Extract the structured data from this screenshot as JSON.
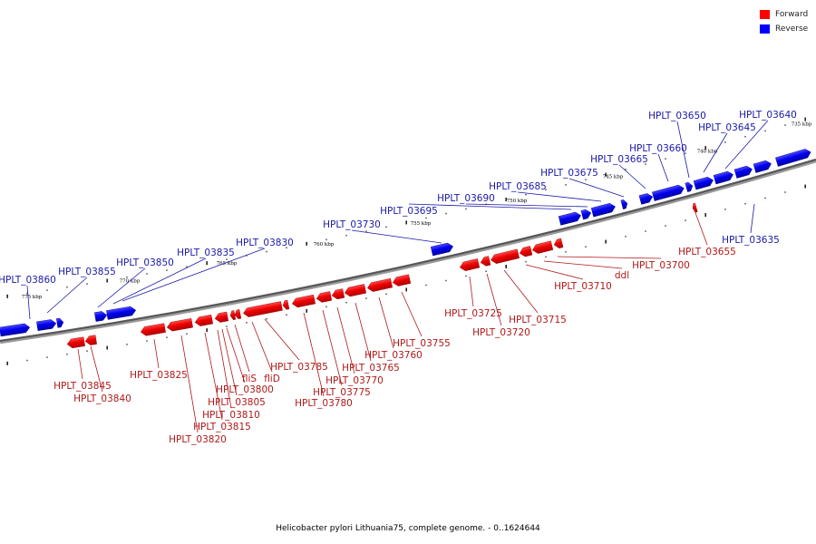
{
  "legend": {
    "forward": {
      "label": "Forward",
      "color": "#ff0000"
    },
    "reverse": {
      "label": "Reverse",
      "color": "#0000ff"
    }
  },
  "caption": "Helicobacter pylori Lithuania75, complete genome. - 0..1624644",
  "kbp_labels": [
    "735 kbp",
    "740 kbp",
    "745 kbp",
    "750 kbp",
    "755 kbp",
    "760 kbp",
    "765 kbp",
    "770 kbp",
    "775 kbp"
  ],
  "reverse_labels": [
    "HPLT_03860",
    "HPLT_03855",
    "HPLT_03850",
    "HPLT_03835",
    "HPLT_03830",
    "HPLT_03730",
    "HPLT_03695",
    "HPLT_03690",
    "HPLT_03685",
    "HPLT_03675",
    "HPLT_03665",
    "HPLT_03660",
    "HPLT_03650",
    "HPLT_03645",
    "HPLT_03640",
    "HPLT_03635"
  ],
  "forward_labels": [
    "HPLT_03845",
    "HPLT_03840",
    "HPLT_03825",
    "HPLT_03820",
    "HPLT_03815",
    "HPLT_03810",
    "HPLT_03805",
    "HPLT_03800",
    "fliS",
    "fliD",
    "HPLT_03785",
    "HPLT_03780",
    "HPLT_03775",
    "HPLT_03770",
    "HPLT_03765",
    "HPLT_03760",
    "HPLT_03755",
    "HPLT_03725",
    "HPLT_03720",
    "HPLT_03715",
    "HPLT_03710",
    "ddl",
    "HPLT_03700",
    "HPLT_03655"
  ]
}
